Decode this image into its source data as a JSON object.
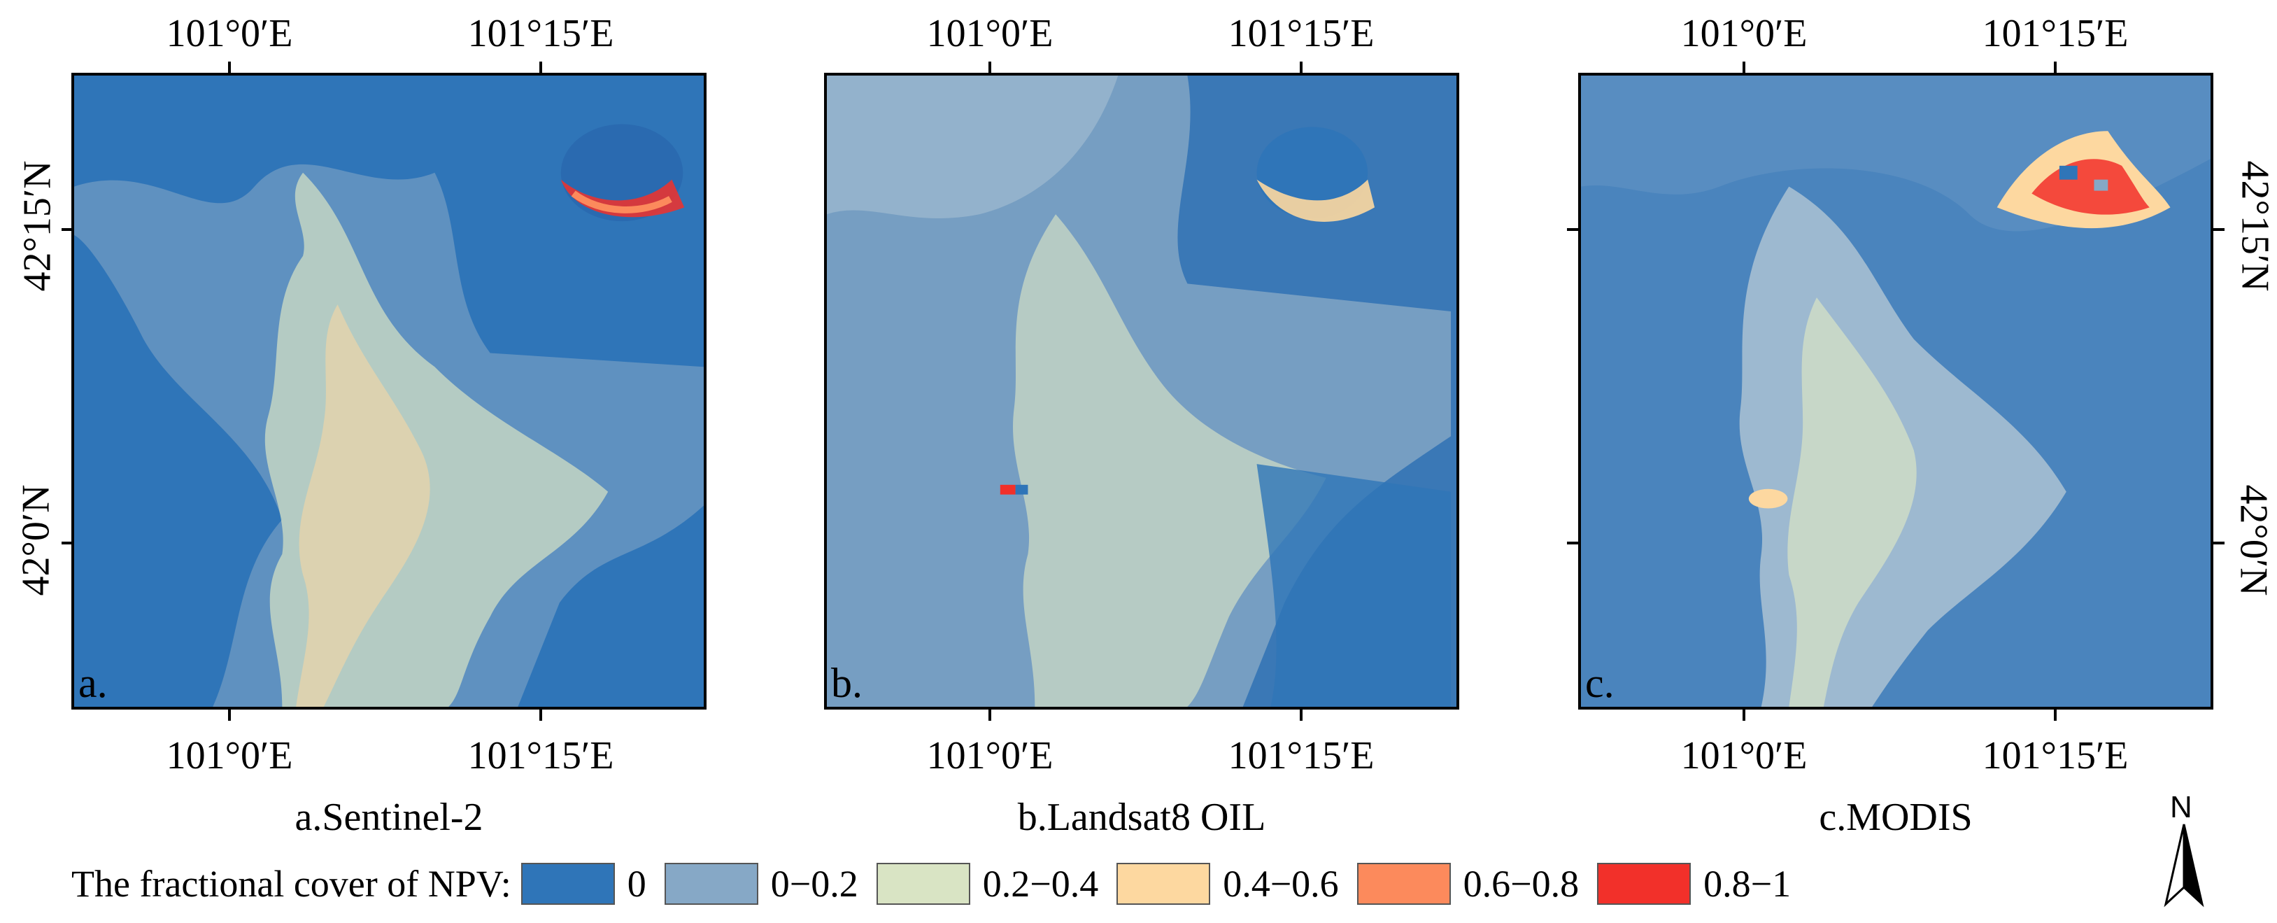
{
  "panels": [
    {
      "letter": "a.",
      "caption": "a.Sentinel-2",
      "top_labels": [
        "101°0′E",
        "101°15′E"
      ],
      "bottom_labels": [
        "101°0′E",
        "101°15′E"
      ],
      "left_labels": [
        "42°15′N",
        "42°0′N"
      ],
      "right_labels": [],
      "base_color": "#2f75b8",
      "pattern": "fine"
    },
    {
      "letter": "b.",
      "caption": "b.Landsat8 OIL",
      "top_labels": [
        "101°0′E",
        "101°15′E"
      ],
      "bottom_labels": [
        "101°0′E",
        "101°15′E"
      ],
      "left_labels": [],
      "right_labels": [],
      "base_color": "#3a78b6",
      "pattern": "medium"
    },
    {
      "letter": "c.",
      "caption": "c.MODIS",
      "top_labels": [
        "101°0′E",
        "101°15′E"
      ],
      "bottom_labels": [
        "101°0′E",
        "101°15′E"
      ],
      "left_labels": [],
      "right_labels": [
        "42°15′N",
        "42°0′N"
      ],
      "base_color": "#4a84bd",
      "pattern": "coarse"
    }
  ],
  "legend": {
    "title": "The fractional cover of NPV:",
    "items": [
      {
        "label": "0",
        "color": "#2f75b8"
      },
      {
        "label": "0−0.2",
        "color": "#86a8c6"
      },
      {
        "label": "0.2−0.4",
        "color": "#d9e4c4"
      },
      {
        "label": "0.4−0.6",
        "color": "#fdd8a0"
      },
      {
        "label": "0.6−0.8",
        "color": "#fc8a5c"
      },
      {
        "label": "0.8−1",
        "color": "#f2302a"
      }
    ]
  },
  "north_arrow": {
    "letter": "N"
  }
}
